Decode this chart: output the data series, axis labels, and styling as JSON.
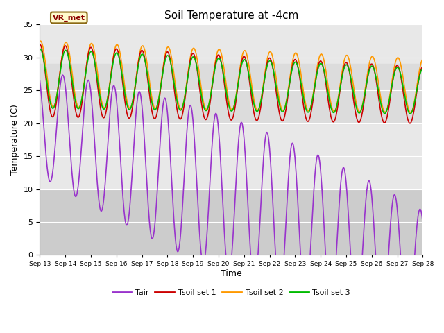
{
  "title": "Soil Temperature at -4cm",
  "xlabel": "Time",
  "ylabel": "Temperature (C)",
  "ylim": [
    0,
    35
  ],
  "colors": {
    "Tair": "#9933cc",
    "Tsoil1": "#cc0000",
    "Tsoil2": "#ff9900",
    "Tsoil3": "#00bb00"
  },
  "legend_labels": [
    "Tair",
    "Tsoil set 1",
    "Tsoil set 2",
    "Tsoil set 3"
  ],
  "vr_met_label": "VR_met",
  "background_color": "#ffffff",
  "plot_bg_color": "#e8e8e8",
  "shaded_band": [
    0,
    10
  ],
  "band_color": "#cccccc",
  "upper_band": [
    20,
    29
  ],
  "upper_band_color": "#dcdcdc",
  "yticks": [
    0,
    5,
    10,
    15,
    20,
    25,
    30,
    35
  ],
  "x_tick_labels": [
    "Sep 13",
    "Sep 14",
    "Sep 15",
    "Sep 16",
    "Sep 17",
    "Sep 18",
    "Sep 19",
    "Sep 20",
    "Sep 21",
    "Sep 22",
    "Sep 23",
    "Sep 24",
    "Sep 25",
    "Sep 26",
    "Sep 27",
    "Sep 28"
  ]
}
